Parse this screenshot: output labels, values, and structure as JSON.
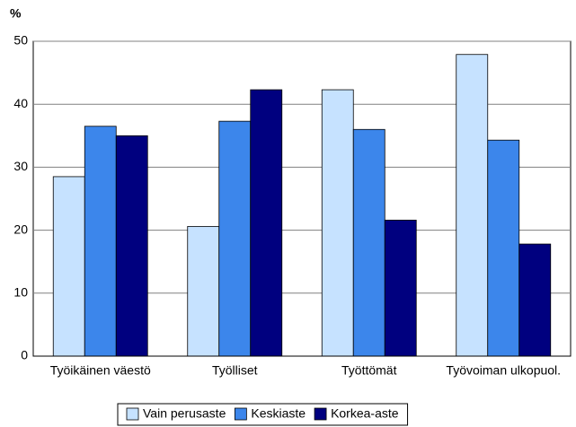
{
  "chart_data": {
    "type": "bar",
    "y_label": "%",
    "categories": [
      "Työikäinen väestö",
      "Työlliset",
      "Työttömät",
      "Työvoiman ulkopuol."
    ],
    "series": [
      {
        "name": "Vain perusaste",
        "color": "#c6e2ff",
        "values": [
          28.5,
          20.6,
          42.3,
          47.9
        ]
      },
      {
        "name": "Keskiaste",
        "color": "#3c86eb",
        "values": [
          36.5,
          37.3,
          36.0,
          34.3
        ]
      },
      {
        "name": "Korkea-aste",
        "color": "#00007f",
        "values": [
          35.0,
          42.3,
          21.6,
          17.8
        ]
      }
    ],
    "ylim": [
      0,
      50
    ],
    "yticks": [
      0,
      10,
      20,
      30,
      40,
      50
    ],
    "grid": true,
    "legend": "bottom"
  }
}
